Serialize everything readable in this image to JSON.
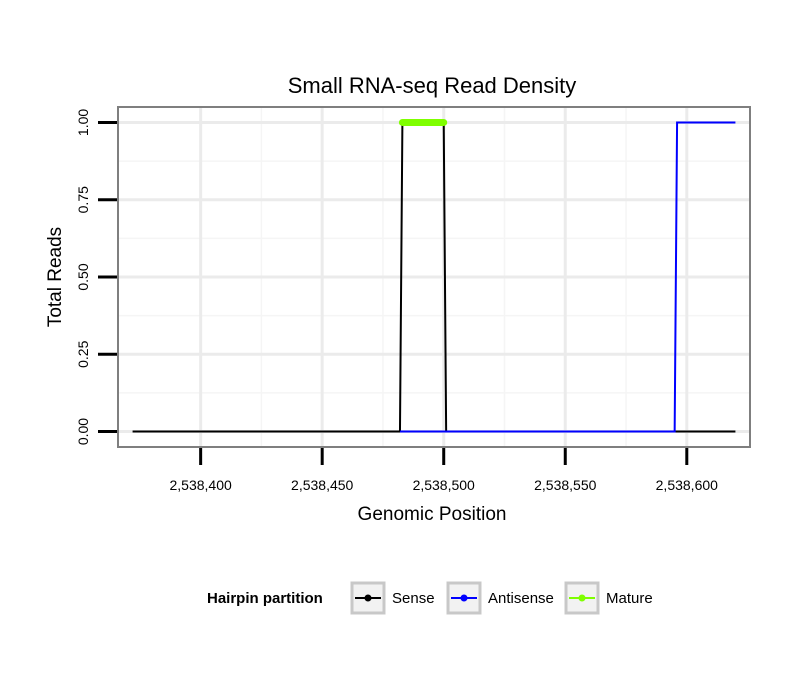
{
  "chart_data": {
    "type": "line",
    "title": "Small RNA-seq Read Density",
    "xlabel": "Genomic Position",
    "ylabel": "Total Reads",
    "xlim": [
      2538366,
      2538626
    ],
    "ylim": [
      -0.05,
      1.05
    ],
    "x_ticks": [
      2538400,
      2538450,
      2538500,
      2538550,
      2538600
    ],
    "x_tick_labels": [
      "2,538,400",
      "2,538,450",
      "2,538,500",
      "2,538,550",
      "2,538,600"
    ],
    "y_ticks": [
      0,
      0.25,
      0.5,
      0.75,
      1
    ],
    "y_tick_labels": [
      "0.00",
      "0.25",
      "0.50",
      "0.75",
      "1.00"
    ],
    "grid": true,
    "legend": {
      "title": "Hairpin partition",
      "position": "bottom",
      "entries": [
        "Sense",
        "Antisense",
        "Mature"
      ]
    },
    "series": [
      {
        "name": "Sense",
        "color": "#000000",
        "points": [
          [
            2538372,
            0
          ],
          [
            2538482,
            0
          ],
          [
            2538483,
            1
          ],
          [
            2538500,
            1
          ],
          [
            2538501,
            0
          ],
          [
            2538620,
            0
          ]
        ]
      },
      {
        "name": "Antisense",
        "color": "#0000ff",
        "points": [
          [
            2538482,
            0
          ],
          [
            2538501,
            0
          ],
          [
            2538595,
            0
          ],
          [
            2538596,
            1
          ],
          [
            2538620,
            1
          ]
        ]
      },
      {
        "name": "Mature",
        "color": "#7fff00",
        "points": [
          [
            2538483,
            1
          ],
          [
            2538500,
            1
          ]
        ]
      }
    ]
  }
}
